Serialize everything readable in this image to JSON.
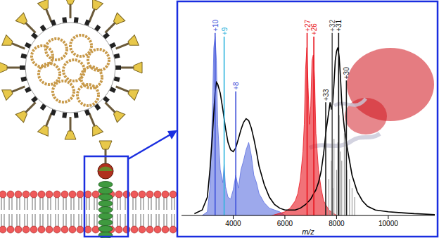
{
  "chart_data": {
    "type": "line",
    "xlabel": "m/z",
    "xlim": [
      2000,
      11800
    ],
    "xticks": [
      4000,
      6000,
      8000,
      10000
    ],
    "ylim": [
      0,
      115
    ],
    "tick_labels": "x",
    "grid": false,
    "series": [
      {
        "type": "area",
        "color": "#5c6fe0",
        "x": [
          2800,
          3000,
          3100,
          3200,
          3250,
          3300,
          3350,
          3400,
          3500,
          3600,
          3650,
          3700,
          3800,
          3900,
          4000,
          4100,
          4200,
          4300,
          4400,
          4500,
          4600,
          4700,
          4800,
          4900,
          5000,
          5200,
          5400,
          5600,
          5800,
          6000
        ],
        "values": [
          0,
          2,
          15,
          60,
          92,
          98,
          85,
          50,
          25,
          18,
          28,
          16,
          10,
          9,
          14,
          22,
          15,
          25,
          30,
          36,
          40,
          33,
          22,
          18,
          12,
          7,
          4,
          3,
          2,
          0
        ]
      },
      {
        "type": "area",
        "color": "#e8141e",
        "x": [
          5500,
          6000,
          6200,
          6400,
          6500,
          6600,
          6700,
          6750,
          6800,
          6850,
          6900,
          6950,
          7000,
          7050,
          7100,
          7150,
          7200,
          7300,
          7400,
          7500,
          7700,
          8000
        ],
        "values": [
          0,
          2,
          4,
          8,
          12,
          20,
          35,
          50,
          80,
          92,
          70,
          50,
          60,
          85,
          88,
          75,
          45,
          25,
          15,
          8,
          3,
          0
        ]
      },
      {
        "type": "stick",
        "color": "#a0a0a0",
        "x": [
          7700,
          7800,
          7850,
          7900,
          8000,
          8050,
          8100,
          8150,
          8200,
          8300,
          8400,
          8500,
          8600,
          8700
        ],
        "values": [
          20,
          30,
          15,
          42,
          25,
          40,
          55,
          35,
          30,
          45,
          25,
          20,
          15,
          10
        ]
      },
      {
        "type": "line",
        "color": "#000000",
        "x": [
          2500,
          2800,
          3000,
          3100,
          3200,
          3300,
          3350,
          3400,
          3500,
          3600,
          3700,
          3800,
          3900,
          4000,
          4100,
          4200,
          4300,
          4400,
          4500,
          4600,
          4700,
          4800,
          4900,
          5000,
          5200,
          5400,
          5600,
          5800,
          6000,
          6200,
          6400,
          6600,
          6800,
          7000,
          7200,
          7300,
          7400,
          7500,
          7600,
          7700,
          7750,
          7800,
          7850,
          7900,
          7950,
          8000,
          8050,
          8100,
          8150,
          8200,
          8300,
          8400,
          8500,
          8600,
          8800,
          9000,
          9200,
          9500,
          10000,
          10500,
          11000,
          11800
        ],
        "values": [
          1,
          3,
          10,
          25,
          45,
          68,
          73,
          72,
          67,
          58,
          48,
          40,
          36,
          35,
          37,
          42,
          47,
          51,
          53,
          52,
          48,
          42,
          35,
          27,
          17,
          10,
          6,
          4,
          3,
          3,
          3,
          4,
          6,
          9,
          14,
          18,
          24,
          34,
          47,
          57,
          62,
          58,
          62,
          72,
          85,
          90,
          92,
          87,
          76,
          62,
          48,
          38,
          30,
          22,
          13,
          8,
          5,
          3,
          2,
          1.5,
          1,
          0.5
        ]
      }
    ],
    "annotations": [
      {
        "text": "+10",
        "x": 3300,
        "y": 100,
        "color": "#3f51d9"
      },
      {
        "text": "+9",
        "x": 3650,
        "y": 98,
        "color": "#2fb4dc"
      },
      {
        "text": "+8",
        "x": 4100,
        "y": 68,
        "color": "#3f51d9"
      },
      {
        "text": "+27",
        "x": 6860,
        "y": 100,
        "color": "#e8141e"
      },
      {
        "text": "+26",
        "x": 7120,
        "y": 98,
        "color": "#e8141e"
      },
      {
        "text": "+33",
        "x": 7580,
        "y": 62,
        "color": "#222222"
      },
      {
        "text": "+32",
        "x": 7830,
        "y": 100,
        "color": "#555555"
      },
      {
        "text": "+31",
        "x": 8080,
        "y": 100,
        "color": "#111111"
      },
      {
        "text": "+30",
        "x": 8380,
        "y": 74,
        "color": "#222222"
      }
    ]
  }
}
